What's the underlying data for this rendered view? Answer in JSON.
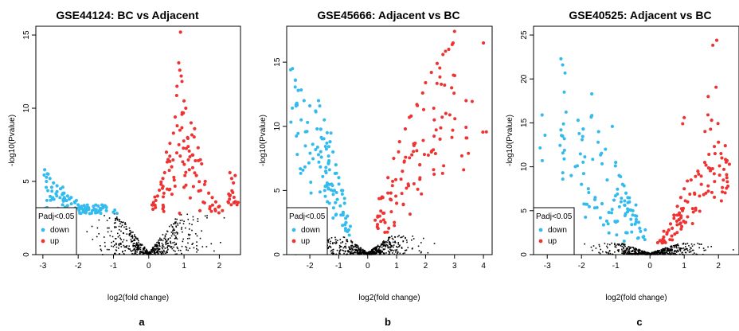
{
  "chart_data": [
    {
      "type": "scatter",
      "title": "GSE44124: BC vs Adjacent",
      "xlabel": "log2(fold change)",
      "ylabel": "-log10(Pvalue)",
      "panel_label": "a",
      "xlim": [
        -3.2,
        2.6
      ],
      "ylim": [
        0,
        15.6
      ],
      "xticks": [
        -3,
        -2,
        -1,
        0,
        1,
        2
      ],
      "yticks": [
        0,
        5,
        10,
        15
      ],
      "threshold": 2.8,
      "legend": {
        "title": "Padj<0.05",
        "entries": [
          "down",
          "up"
        ],
        "position": "bottom-left"
      },
      "colors": {
        "down": "#33bbee",
        "up": "#ee3333",
        "ns": "#000000"
      },
      "series": [
        {
          "name": "down",
          "points": [
            [
              -2.95,
              5.8
            ],
            [
              -2.85,
              5.5
            ],
            [
              -2.8,
              5.2
            ],
            [
              -2.7,
              4.9
            ],
            [
              -2.6,
              4.7
            ],
            [
              -2.5,
              4.5
            ],
            [
              -2.4,
              4.2
            ],
            [
              -2.3,
              4.0
            ],
            [
              -2.25,
              3.8
            ],
            [
              -2.1,
              3.6
            ],
            [
              -2.0,
              3.4
            ],
            [
              -1.9,
              3.3
            ],
            [
              -1.8,
              3.2
            ],
            [
              -1.7,
              3.1
            ],
            [
              -1.6,
              3.0
            ],
            [
              -1.5,
              2.95
            ],
            [
              -2.6,
              4.3
            ],
            [
              -2.2,
              3.9
            ],
            [
              -1.4,
              3.0
            ],
            [
              -1.3,
              3.2
            ],
            [
              -1.2,
              3.0
            ],
            [
              -1.0,
              2.9
            ],
            [
              -2.9,
              5.0
            ],
            [
              -2.75,
              4.6
            ],
            [
              -2.45,
              4.1
            ],
            [
              -2.05,
              3.7
            ],
            [
              -1.85,
              3.0
            ],
            [
              -1.55,
              3.1
            ]
          ]
        },
        {
          "name": "up",
          "points": [
            [
              0.9,
              15.2
            ],
            [
              0.85,
              13.1
            ],
            [
              0.88,
              12.6
            ],
            [
              0.92,
              12.2
            ],
            [
              0.8,
              11.5
            ],
            [
              1.0,
              10.5
            ],
            [
              1.05,
              10.0
            ],
            [
              0.95,
              9.7
            ],
            [
              0.75,
              9.4
            ],
            [
              1.2,
              9.0
            ],
            [
              1.3,
              8.6
            ],
            [
              0.7,
              8.3
            ],
            [
              1.1,
              8.0
            ],
            [
              0.6,
              7.6
            ],
            [
              1.4,
              7.3
            ],
            [
              0.5,
              7.0
            ],
            [
              1.25,
              6.8
            ],
            [
              0.55,
              6.5
            ],
            [
              1.5,
              6.2
            ],
            [
              0.65,
              6.0
            ],
            [
              1.15,
              5.8
            ],
            [
              0.45,
              5.6
            ],
            [
              1.35,
              5.4
            ],
            [
              0.4,
              5.2
            ],
            [
              1.6,
              5.0
            ],
            [
              0.35,
              4.8
            ],
            [
              1.0,
              4.6
            ],
            [
              0.3,
              4.4
            ],
            [
              1.7,
              4.2
            ],
            [
              0.25,
              4.0
            ],
            [
              1.8,
              3.9
            ],
            [
              0.2,
              3.7
            ],
            [
              1.9,
              3.6
            ],
            [
              0.15,
              3.4
            ],
            [
              2.0,
              3.3
            ],
            [
              0.12,
              3.1
            ],
            [
              1.45,
              3.0
            ],
            [
              2.3,
              5.6
            ],
            [
              2.35,
              5.2
            ],
            [
              2.4,
              4.9
            ],
            [
              2.45,
              5.4
            ],
            [
              2.25,
              3.6
            ]
          ]
        }
      ]
    },
    {
      "type": "scatter",
      "title": "GSE45666: Adjacent vs BC",
      "xlabel": "log2(fold change)",
      "ylabel": "-log10(Pvalue)",
      "panel_label": "b",
      "xlim": [
        -2.8,
        4.3
      ],
      "ylim": [
        0,
        17.8
      ],
      "xticks": [
        -2,
        -1,
        0,
        1,
        2,
        3,
        4
      ],
      "yticks": [
        0,
        5,
        10,
        15
      ],
      "threshold": 1.5,
      "legend": {
        "title": "Padj<0.05",
        "entries": [
          "down",
          "up"
        ],
        "position": "bottom-left"
      },
      "colors": {
        "down": "#33bbee",
        "up": "#ee3333",
        "ns": "#000000"
      },
      "series": [
        {
          "name": "down",
          "points": [
            [
              -2.6,
              14.5
            ],
            [
              -2.5,
              13.6
            ],
            [
              -2.4,
              12.8
            ],
            [
              -2.2,
              12.0
            ],
            [
              -2.0,
              11.6
            ],
            [
              -1.8,
              11.2
            ],
            [
              -1.7,
              12.0
            ],
            [
              -1.5,
              10.5
            ],
            [
              -1.4,
              9.5
            ],
            [
              -1.3,
              8.8
            ],
            [
              -1.2,
              8.0
            ],
            [
              -1.1,
              7.0
            ],
            [
              -1.0,
              6.0
            ],
            [
              -0.9,
              5.0
            ],
            [
              -0.8,
              4.0
            ],
            [
              -0.7,
              3.0
            ],
            [
              -0.6,
              2.2
            ],
            [
              -2.3,
              10.5
            ],
            [
              -2.1,
              9.6
            ],
            [
              -1.9,
              8.6
            ],
            [
              -1.6,
              7.6
            ],
            [
              -1.45,
              6.5
            ],
            [
              -1.25,
              5.5
            ],
            [
              -1.05,
              4.3
            ],
            [
              -0.85,
              3.3
            ],
            [
              -0.75,
              2.5
            ],
            [
              -2.45,
              11.8
            ],
            [
              -1.75,
              9.8
            ],
            [
              -1.35,
              7.2
            ],
            [
              -1.15,
              5.0
            ]
          ]
        },
        {
          "name": "up",
          "points": [
            [
              3.0,
              17.4
            ],
            [
              2.95,
              16.5
            ],
            [
              2.8,
              16.0
            ],
            [
              2.6,
              15.6
            ],
            [
              2.4,
              14.9
            ],
            [
              2.2,
              14.2
            ],
            [
              2.0,
              13.4
            ],
            [
              1.9,
              12.6
            ],
            [
              1.7,
              11.7
            ],
            [
              1.5,
              10.8
            ],
            [
              1.3,
              9.8
            ],
            [
              1.1,
              8.8
            ],
            [
              0.9,
              7.5
            ],
            [
              0.7,
              6.0
            ],
            [
              0.5,
              4.5
            ],
            [
              0.35,
              3.0
            ],
            [
              4.0,
              16.5
            ],
            [
              3.4,
              12.0
            ],
            [
              2.7,
              11.0
            ],
            [
              2.5,
              9.0
            ],
            [
              2.2,
              8.0
            ],
            [
              1.8,
              7.0
            ],
            [
              1.4,
              5.5
            ],
            [
              1.0,
              4.0
            ],
            [
              0.6,
              2.5
            ],
            [
              2.9,
              13.0
            ],
            [
              2.3,
              10.5
            ],
            [
              1.6,
              8.5
            ],
            [
              1.2,
              6.5
            ],
            [
              0.8,
              4.8
            ]
          ]
        }
      ]
    },
    {
      "type": "scatter",
      "title": "GSE40525: Adjacent vs BC",
      "xlabel": "log2(fold change)",
      "ylabel": "-log10(Pvalue)",
      "panel_label": "c",
      "xlim": [
        -3.4,
        2.6
      ],
      "ylim": [
        0,
        26
      ],
      "xticks": [
        -3,
        -2,
        -1,
        0,
        1,
        2
      ],
      "yticks": [
        0,
        5,
        10,
        15,
        20,
        25
      ],
      "threshold": 1.3,
      "legend": {
        "title": "Padj<0.05",
        "entries": [
          "down",
          "up"
        ],
        "position": "bottom-left"
      },
      "colors": {
        "down": "#33bbee",
        "up": "#ee3333",
        "ns": "#000000"
      },
      "series": [
        {
          "name": "down",
          "points": [
            [
              -3.15,
              15.9
            ],
            [
              -2.6,
              22.3
            ],
            [
              -2.55,
              21.6
            ],
            [
              -2.6,
              14.2
            ],
            [
              -2.55,
              13.5
            ],
            [
              -2.1,
              15.3
            ],
            [
              -1.95,
              14.3
            ],
            [
              -1.7,
              18.3
            ],
            [
              -1.5,
              14.0
            ],
            [
              -1.3,
              12.0
            ],
            [
              -1.1,
              14.6
            ],
            [
              -1.0,
              10.5
            ],
            [
              -0.9,
              9.0
            ],
            [
              -0.8,
              8.0
            ],
            [
              -0.7,
              7.0
            ],
            [
              -0.6,
              6.0
            ],
            [
              -0.5,
              5.0
            ],
            [
              -0.4,
              4.0
            ],
            [
              -0.3,
              3.0
            ],
            [
              -0.2,
              2.0
            ],
            [
              -2.3,
              9.0
            ],
            [
              -2.0,
              8.0
            ],
            [
              -1.8,
              7.5
            ],
            [
              -1.6,
              6.5
            ],
            [
              -1.4,
              5.8
            ],
            [
              -1.2,
              4.8
            ],
            [
              -0.95,
              3.8
            ],
            [
              -0.7,
              2.5
            ],
            [
              -1.25,
              8.5
            ],
            [
              -1.05,
              6.2
            ]
          ]
        },
        {
          "name": "up",
          "points": [
            [
              1.95,
              24.4
            ],
            [
              1.7,
              18.0
            ],
            [
              1.8,
              15.3
            ],
            [
              1.0,
              15.6
            ],
            [
              2.0,
              12.8
            ],
            [
              2.2,
              12.4
            ],
            [
              2.25,
              10.7
            ],
            [
              1.6,
              10.5
            ],
            [
              1.4,
              9.5
            ],
            [
              1.2,
              8.5
            ],
            [
              1.0,
              7.5
            ],
            [
              0.9,
              6.5
            ],
            [
              0.8,
              5.5
            ],
            [
              0.7,
              4.5
            ],
            [
              0.6,
              3.5
            ],
            [
              0.5,
              2.5
            ],
            [
              0.4,
              2.0
            ],
            [
              0.3,
              1.6
            ],
            [
              1.9,
              11.5
            ],
            [
              1.5,
              8.0
            ],
            [
              1.1,
              6.0
            ],
            [
              0.85,
              4.0
            ],
            [
              0.65,
              3.0
            ],
            [
              1.3,
              7.0
            ],
            [
              1.75,
              9.8
            ],
            [
              2.1,
              11.0
            ],
            [
              0.95,
              5.0
            ],
            [
              0.55,
              2.8
            ]
          ]
        }
      ]
    }
  ]
}
